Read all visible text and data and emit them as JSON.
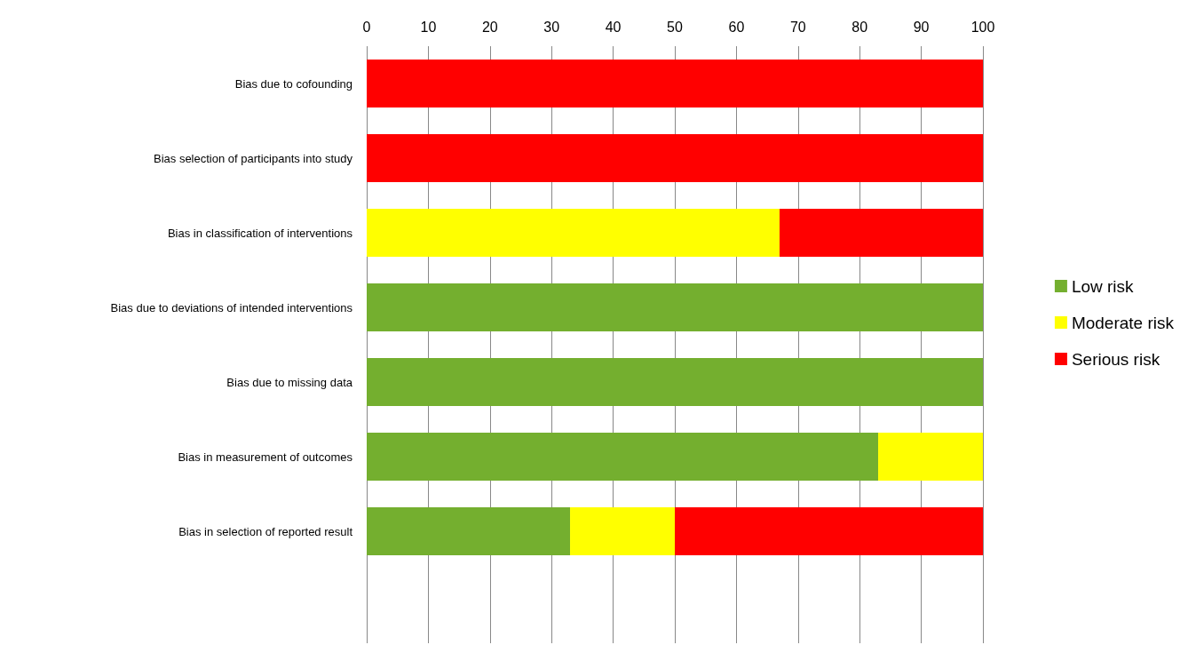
{
  "chart_data": {
    "type": "bar",
    "orientation": "horizontal",
    "stacked": true,
    "categories": [
      "Bias due to cofounding",
      "Bias selection of participants into study",
      "Bias in classification of interventions",
      "Bias due to deviations of intended interventions",
      "Bias due to missing data",
      "Bias in measurement of outcomes",
      "Bias in selection of reported result",
      null
    ],
    "series": [
      {
        "name": "Low risk",
        "color": "#74af2f",
        "values": [
          0,
          0,
          0,
          100,
          100,
          83,
          33,
          null
        ]
      },
      {
        "name": "Moderate risk",
        "color": "#ffff00",
        "values": [
          0,
          0,
          67,
          0,
          0,
          17,
          17,
          null
        ]
      },
      {
        "name": "Serious risk",
        "color": "#ff0000",
        "values": [
          100,
          100,
          33,
          0,
          0,
          0,
          50,
          null
        ]
      }
    ],
    "xlim": [
      0,
      100
    ],
    "xticks": [
      0,
      10,
      20,
      30,
      40,
      50,
      60,
      70,
      80,
      90,
      100
    ],
    "grid": "x",
    "legend": "right"
  }
}
